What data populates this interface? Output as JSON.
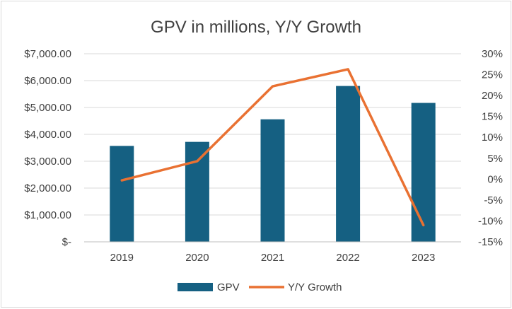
{
  "chart_data": {
    "type": "bar",
    "title": "GPV in millions, Y/Y Growth",
    "categories": [
      "2019",
      "2020",
      "2021",
      "2022",
      "2023"
    ],
    "series": [
      {
        "name": "GPV",
        "type": "bar",
        "axis": "left",
        "color": "#156082",
        "values": [
          3570,
          3720,
          4560,
          5800,
          5170
        ]
      },
      {
        "name": "Y/Y Growth",
        "type": "line",
        "axis": "right",
        "color": "#e97132",
        "values": [
          -0.3,
          4.3,
          22.2,
          26.3,
          -11.0
        ]
      }
    ],
    "y_left": {
      "min": 0,
      "max": 7000,
      "step": 1000,
      "tick_labels": [
        "$-",
        "$1,000.00",
        "$2,000.00",
        "$3,000.00",
        "$4,000.00",
        "$5,000.00",
        "$6,000.00",
        "$7,000.00"
      ]
    },
    "y_right": {
      "min": -15,
      "max": 30,
      "step": 5,
      "tick_labels": [
        "-15%",
        "-10%",
        "-5%",
        "0%",
        "5%",
        "10%",
        "15%",
        "20%",
        "25%",
        "30%"
      ]
    },
    "grid": true,
    "legend_position": "bottom"
  }
}
